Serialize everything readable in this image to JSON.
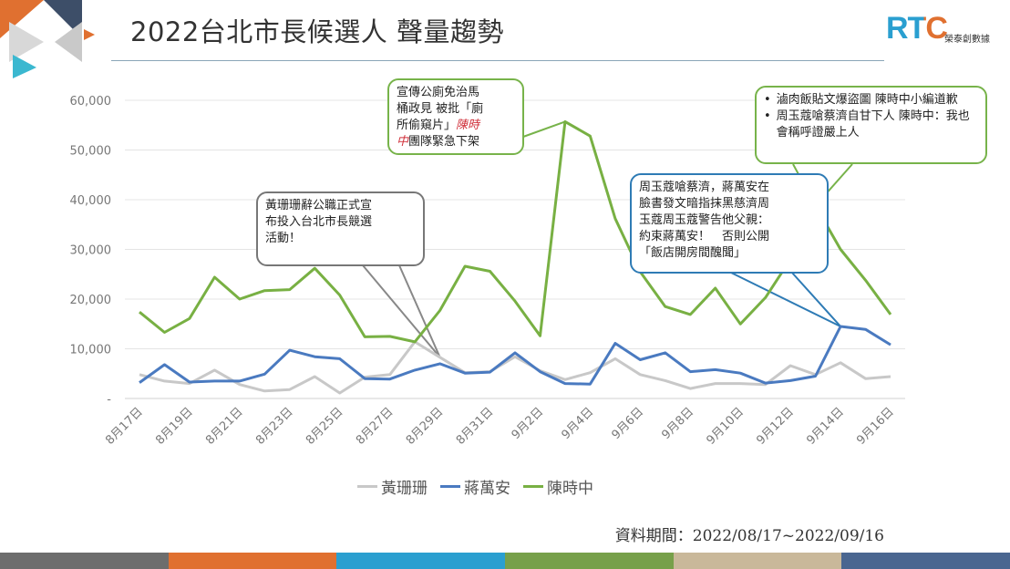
{
  "slide": {
    "title": "2022台北市長候選人 聲量趨勢",
    "logo_text": "RTC",
    "logo_subtitle": "榮泰創數據",
    "footer": "資料期間：2022/08/17~2022/09/16",
    "colors": {
      "accent_orange": "#e07030",
      "accent_navy": "#3d4e68",
      "accent_teal": "#3bb8d0",
      "title_rule": "#8aa6b8"
    },
    "bottom_bar_colors": [
      "#6d6d6d",
      "#e07030",
      "#2a9fd0",
      "#77a04a",
      "#c9b89a",
      "#4a6690"
    ]
  },
  "callouts": {
    "huang": {
      "lines": [
        "黃珊珊辭公職正式宣",
        "布投入台北市長競選",
        "活動！"
      ]
    },
    "poster": {
      "line1": "宣傳公廁免治馬",
      "line2": "桶政見 被批「廁",
      "line3": "所偷窺片」",
      "line3_red": "陳時",
      "line4_red": "中",
      "line4": "團隊緊急下架"
    },
    "chen_right": {
      "bullets": [
        "滷肉飯貼文爆盜圖 陳時中小編道歉",
        "周玉蔻嗆蔡濟自甘下人 陳時中：我也會稱呼證嚴上人"
      ]
    },
    "chou": {
      "lines": [
        "周玉蔻嗆蔡濟，蔣萬安在",
        "臉書發文暗指抹黑慈濟周",
        "玉蔻周玉蔻警告他父親：",
        "約束蔣萬安！　否則公開",
        "「飯店開房間醜聞」"
      ]
    }
  },
  "chart_data": {
    "type": "line",
    "title": "",
    "xlabel": "",
    "ylabel": "",
    "ylim": [
      0,
      60000
    ],
    "yticks": [
      "-",
      "10,000",
      "20,000",
      "30,000",
      "40,000",
      "50,000",
      "60,000"
    ],
    "x_tick_labels": [
      "8月17日",
      "8月19日",
      "8月21日",
      "8月23日",
      "8月25日",
      "8月27日",
      "8月29日",
      "8月31日",
      "9月2日",
      "9月4日",
      "9月6日",
      "9月8日",
      "9月10日",
      "9月12日",
      "9月14日",
      "9月16日"
    ],
    "grid": true,
    "legend_position": "bottom",
    "categories": [
      "8/17",
      "8/18",
      "8/19",
      "8/20",
      "8/21",
      "8/22",
      "8/23",
      "8/24",
      "8/25",
      "8/26",
      "8/27",
      "8/28",
      "8/29",
      "8/30",
      "8/31",
      "9/1",
      "9/2",
      "9/3",
      "9/4",
      "9/5",
      "9/6",
      "9/7",
      "9/8",
      "9/9",
      "9/10",
      "9/11",
      "9/12",
      "9/13",
      "9/14",
      "9/15",
      "9/16"
    ],
    "series": [
      {
        "name": "黃珊珊",
        "color": "#c8c8c8",
        "values": [
          4800,
          3500,
          3000,
          5700,
          2800,
          1500,
          1800,
          4400,
          1100,
          4300,
          4800,
          11400,
          8300,
          5200,
          5400,
          8400,
          5600,
          3800,
          5200,
          8000,
          4800,
          3600,
          2000,
          3000,
          3000,
          2800,
          6600,
          4800,
          7200,
          4000,
          4400
        ]
      },
      {
        "name": "蔣萬安",
        "color": "#4a7ac0",
        "values": [
          3200,
          6800,
          3300,
          3500,
          3500,
          4900,
          9700,
          8400,
          8000,
          4000,
          3900,
          5700,
          7000,
          5100,
          5300,
          9200,
          5400,
          3000,
          2900,
          11100,
          7800,
          9200,
          5400,
          5800,
          5100,
          3100,
          3600,
          4500,
          14500,
          13900,
          10800
        ]
      },
      {
        "name": "陳時中",
        "color": "#78b043",
        "values": [
          17400,
          13300,
          16100,
          24400,
          20000,
          21700,
          21900,
          26200,
          20800,
          12400,
          12500,
          11400,
          17700,
          26600,
          25600,
          19600,
          12600,
          55700,
          52800,
          36200,
          25500,
          18500,
          16900,
          22200,
          15000,
          20300,
          28000,
          38800,
          30000,
          23800,
          16900
        ]
      }
    ]
  }
}
